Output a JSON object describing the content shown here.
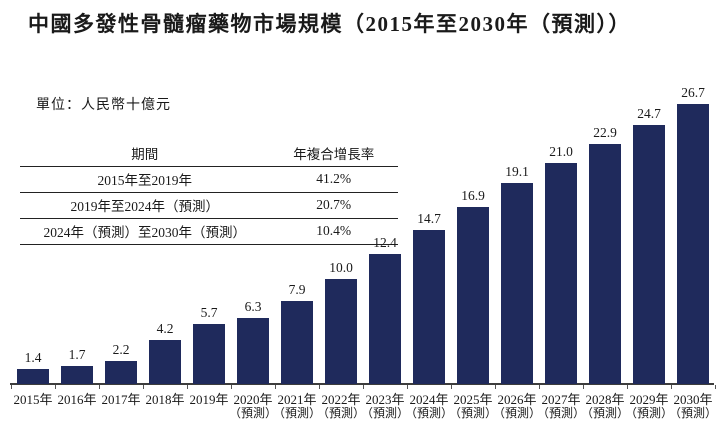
{
  "chart_data": {
    "type": "bar",
    "title": "中國多發性骨髓瘤藥物市場規模（2015年至2030年（預測））",
    "unit_label": "單位：人民幣十億元",
    "categories": [
      "2015年",
      "2016年",
      "2017年",
      "2018年",
      "2019年",
      "2020年",
      "2021年",
      "2022年",
      "2023年",
      "2024年",
      "2025年",
      "2026年",
      "2027年",
      "2028年",
      "2029年",
      "2030年"
    ],
    "forecast_note": "（預測）",
    "forecast_start_index": 5,
    "values": [
      1.4,
      1.7,
      2.2,
      4.2,
      5.7,
      6.3,
      7.9,
      10.0,
      12.4,
      14.7,
      16.9,
      19.1,
      21.0,
      22.9,
      24.7,
      26.7
    ],
    "value_labels": [
      "1.4",
      "1.7",
      "2.2",
      "4.2",
      "5.7",
      "6.3",
      "7.9",
      "10.0",
      "12.4",
      "14.7",
      "16.9",
      "19.1",
      "21.0",
      "22.9",
      "24.7",
      "26.7"
    ],
    "xlabel": "",
    "ylabel": "",
    "ylim": [
      0,
      28
    ],
    "grid": "off",
    "legend": "none",
    "bar_color": "#1F2A5C",
    "axis_color": "#3D3D3D",
    "text_color": "#1A1A1A",
    "cagr_table": {
      "headers": [
        "期間",
        "年複合增長率"
      ],
      "rows": [
        [
          "2015年至2019年",
          "41.2%"
        ],
        [
          "2019年至2024年（預測）",
          "20.7%"
        ],
        [
          "2024年（預測）至2030年（預測）",
          "10.4%"
        ]
      ]
    }
  }
}
